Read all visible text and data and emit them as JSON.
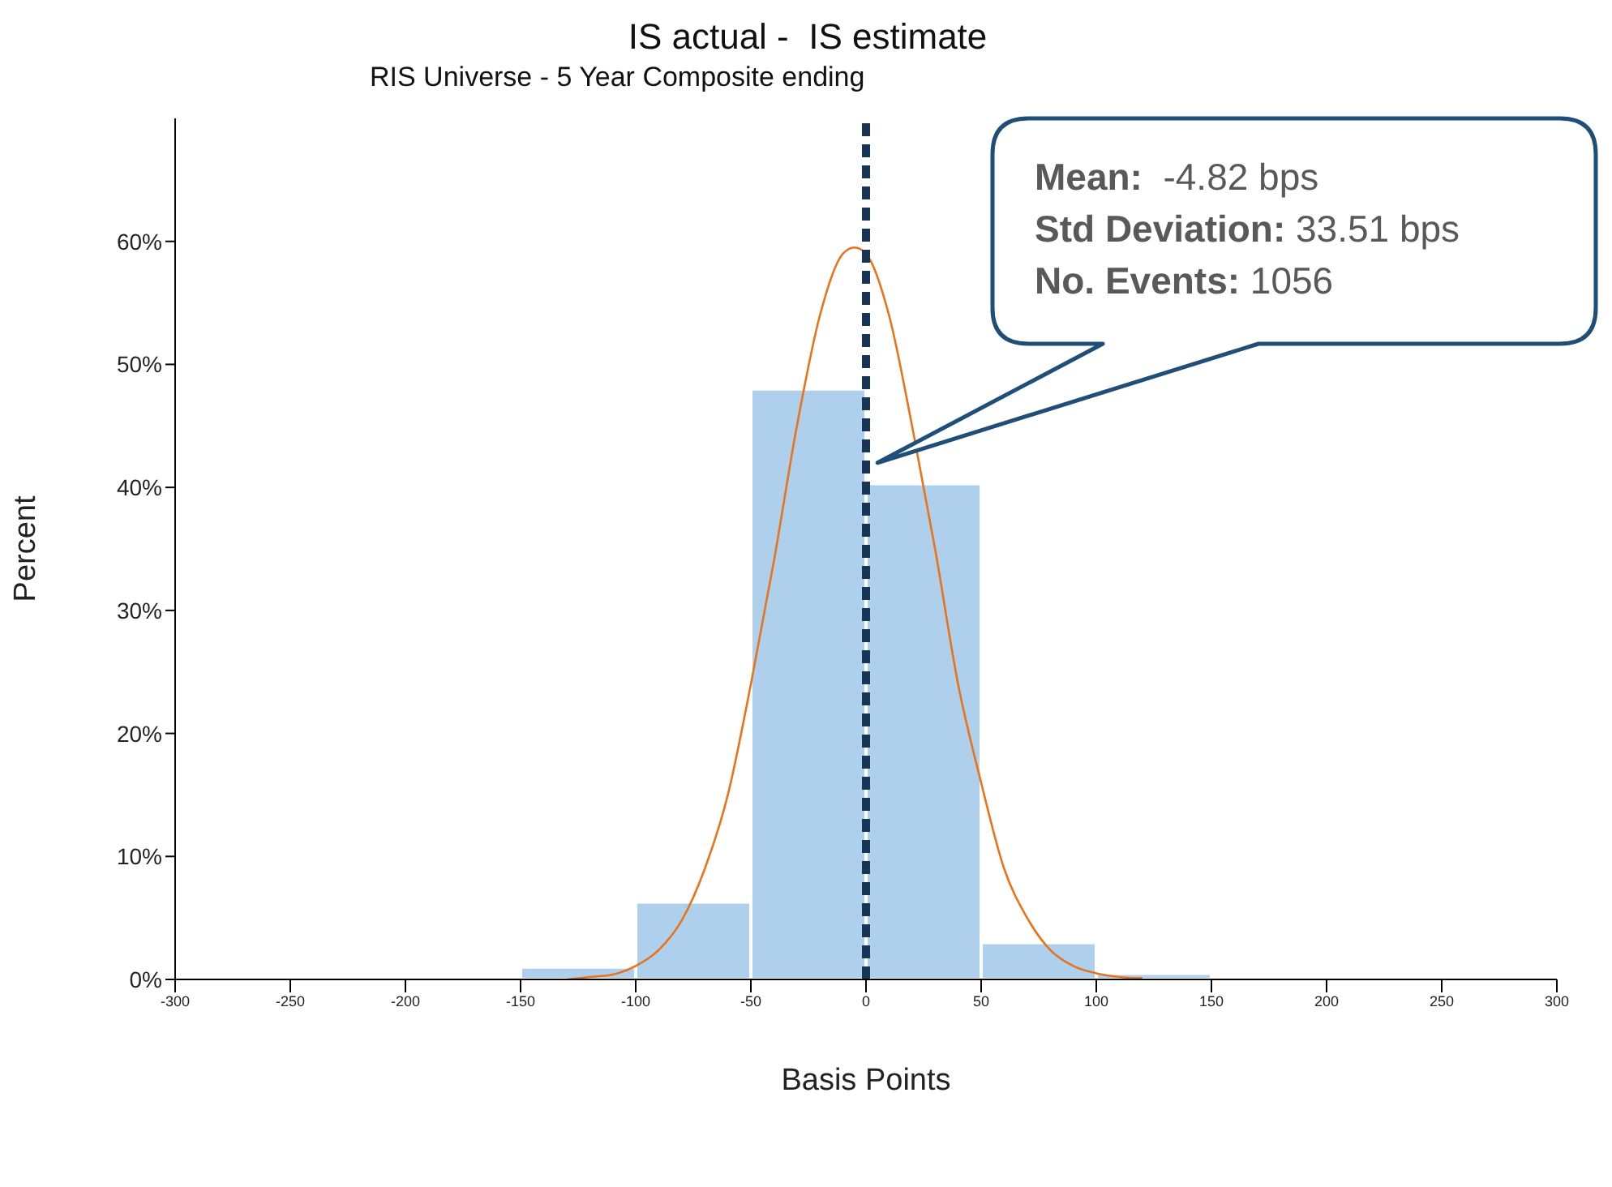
{
  "chart_data": {
    "type": "histogram",
    "title": "IS actual -  IS estimate",
    "subtitle": "RIS Universe - 5 Year Composite ending",
    "xlabel": "Basis Points",
    "ylabel": "Percent",
    "bins": [
      -150,
      -100,
      -50,
      0,
      50,
      100,
      150
    ],
    "values": [
      1.0,
      6.3,
      48,
      40.3,
      3.0,
      0.5
    ],
    "color": "#aed0ec",
    "series": [
      {
        "type": "line",
        "color": "#e8731a",
        "x": [
          -130,
          -120,
          -110,
          -100,
          -90,
          -80,
          -70,
          -60,
          -50,
          -40,
          -30,
          -20,
          -10,
          -5,
          0,
          10,
          20,
          30,
          40,
          50,
          60,
          70,
          80,
          90,
          100,
          110,
          120
        ],
        "values": [
          0,
          0.2,
          0.4,
          1.1,
          2.4,
          4.8,
          9,
          15,
          24,
          34,
          45,
          54,
          59,
          59.5,
          59,
          54,
          45,
          35,
          24,
          16,
          9,
          5,
          2.4,
          1.1,
          0.5,
          0.2,
          0.1
        ]
      }
    ],
    "xlim": [
      -300,
      300
    ],
    "xticks": [
      -300,
      -250,
      -200,
      -150,
      -100,
      -50,
      0,
      50,
      100,
      150,
      200,
      250,
      300
    ],
    "ylim": [
      0,
      70
    ],
    "yticks": [
      {
        "value": 0,
        "label": "0%"
      },
      {
        "value": 10,
        "label": "10%"
      },
      {
        "value": 20,
        "label": "20%"
      },
      {
        "value": 30,
        "label": "30%"
      },
      {
        "value": 40,
        "label": "40%"
      },
      {
        "value": 50,
        "label": "50%"
      },
      {
        "value": 60,
        "label": "60%"
      }
    ],
    "ref_lines": [
      {
        "axis": "x",
        "value": 0,
        "color": "#173656",
        "line_style": "dashed"
      }
    ],
    "annotations": [
      "Mean:  -4.82 bps",
      "Std Deviation: 33.51 bps",
      "No. Events: 1056"
    ],
    "marker": "none",
    "line_style": "solid"
  }
}
